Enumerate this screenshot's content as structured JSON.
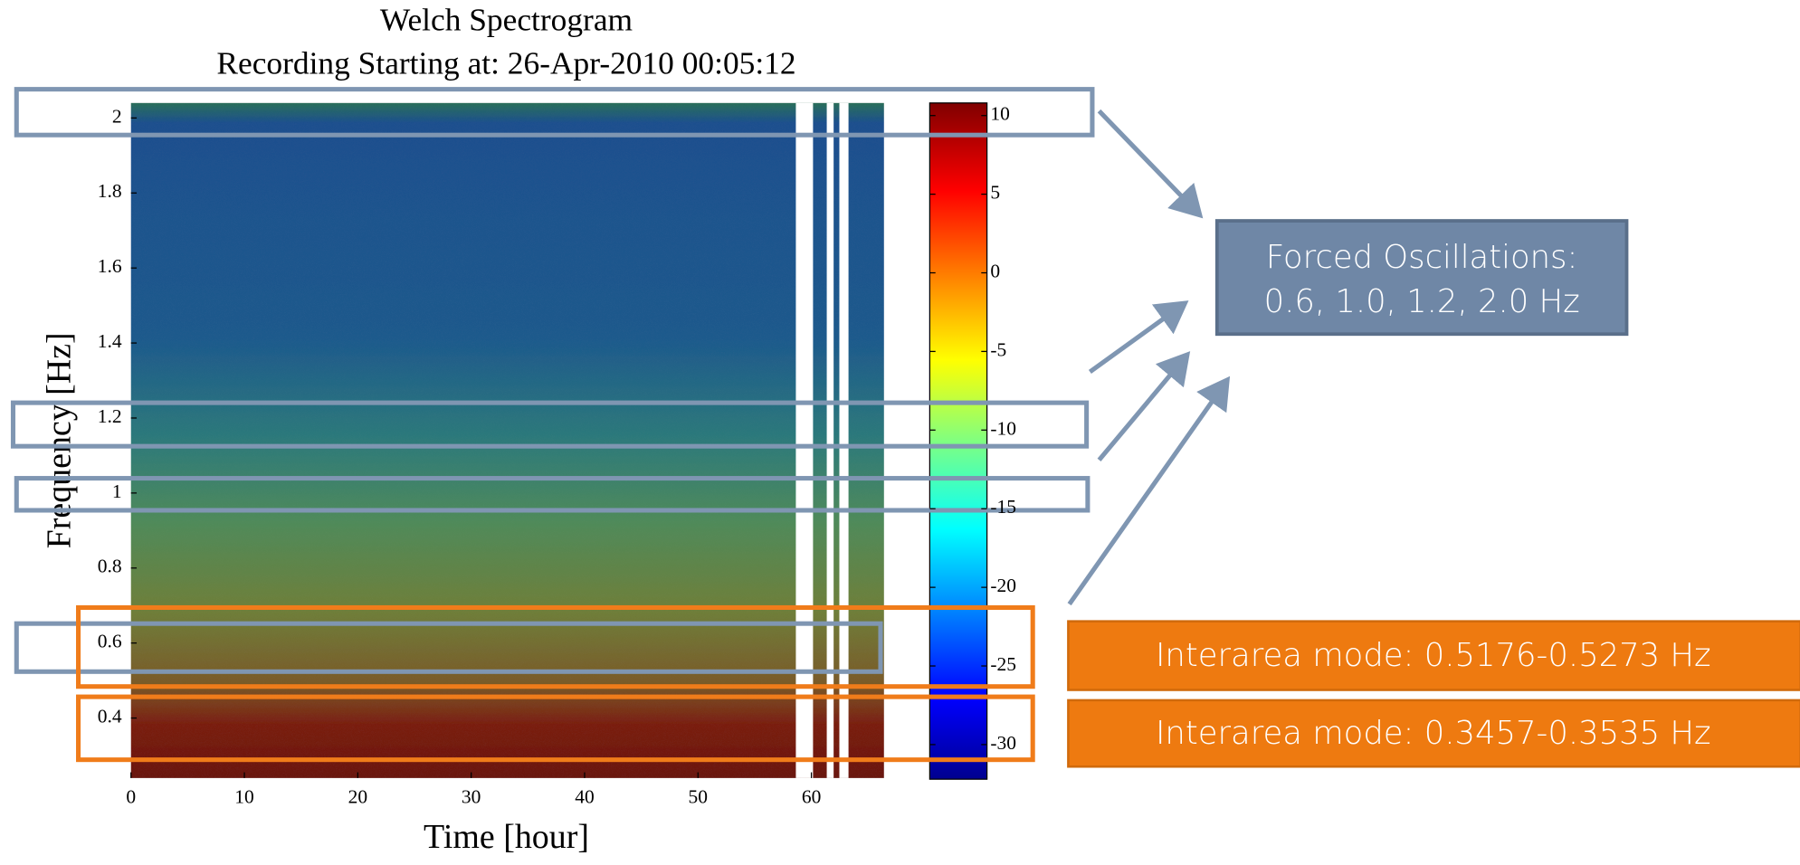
{
  "chart_data": {
    "type": "spectrogram",
    "title": "Welch Spectrogram",
    "subtitle": "Recording Starting at: 26-Apr-2010 00:05:12",
    "x_label": "Time [hour]",
    "y_label": "Frequency [Hz]",
    "xlim": [
      0,
      66.4
    ],
    "ylim": [
      0.24,
      2.04
    ],
    "xticks": [
      0,
      10,
      20,
      30,
      40,
      50,
      60
    ],
    "yticks": [
      0.4,
      0.6,
      0.8,
      1,
      1.2,
      1.4,
      1.6,
      1.8,
      2
    ],
    "colorbar": {
      "clim": [
        -32.2,
        10.8
      ],
      "ticks": [
        10,
        5,
        0,
        -5,
        -10,
        -15,
        -20,
        -25,
        -30
      ]
    },
    "annotations": {
      "forced": {
        "lines": [
          "Forced Oscillations:",
          "0.6, 1.0, 1.2, 2.0 Hz"
        ]
      },
      "interarea_1": "Interarea mode: 0.5176-0.5273 Hz",
      "interarea_2": "Interarea mode: 0.3457-0.3535 Hz"
    }
  }
}
